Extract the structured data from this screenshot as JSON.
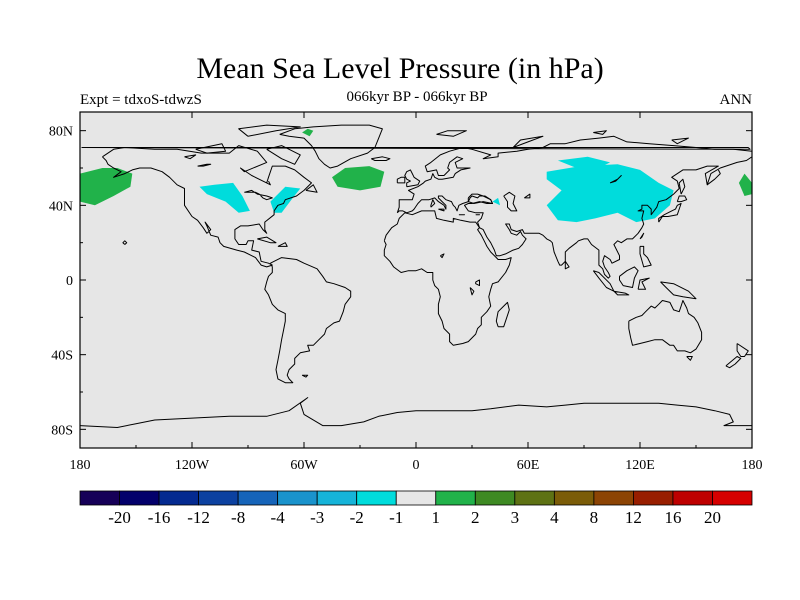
{
  "title": "Mean Sea Level Pressure (in hPa)",
  "subtitle": "066kyr BP - 066kyr BP",
  "left_label": "Expt = tdxoS-tdwzS",
  "right_label": "ANN",
  "map": {
    "projection": "cylindrical-equidistant",
    "lon_range": [
      -180,
      180
    ],
    "lat_range": [
      -90,
      90
    ],
    "background_color": "#e6e6e6",
    "coastline_color": "#000000",
    "x_ticks": [
      {
        "lon": -180,
        "label": "180"
      },
      {
        "lon": -120,
        "label": "120W"
      },
      {
        "lon": -60,
        "label": "60W"
      },
      {
        "lon": 0,
        "label": "0"
      },
      {
        "lon": 60,
        "label": "60E"
      },
      {
        "lon": 120,
        "label": "120E"
      },
      {
        "lon": 180,
        "label": "180"
      }
    ],
    "y_ticks": [
      {
        "lat": 80,
        "label": "80N"
      },
      {
        "lat": 40,
        "label": "40N"
      },
      {
        "lat": 0,
        "label": "0"
      },
      {
        "lat": -40,
        "label": "40S"
      },
      {
        "lat": -80,
        "label": "80S"
      }
    ],
    "anomaly_regions": [
      {
        "name": "north-pacific-positive",
        "level": "1 to 2",
        "color": "#21b24a",
        "points": [
          [
            -180,
            57
          ],
          [
            -168,
            60
          ],
          [
            -160,
            60
          ],
          [
            -152,
            57
          ],
          [
            -153,
            50
          ],
          [
            -162,
            45
          ],
          [
            -172,
            40
          ],
          [
            -180,
            42
          ]
        ]
      },
      {
        "name": "dateline-positive-east",
        "level": "1 to 2",
        "color": "#21b24a",
        "points": [
          [
            180,
            52
          ],
          [
            176,
            57
          ],
          [
            173,
            52
          ],
          [
            176,
            45
          ],
          [
            180,
            46
          ]
        ]
      },
      {
        "name": "north-atlantic-positive",
        "level": "1 to 2",
        "color": "#21b24a",
        "points": [
          [
            -45,
            55
          ],
          [
            -38,
            60
          ],
          [
            -25,
            61
          ],
          [
            -17,
            58
          ],
          [
            -19,
            50
          ],
          [
            -30,
            48
          ],
          [
            -42,
            50
          ]
        ]
      },
      {
        "name": "greenland-positive",
        "level": "1 to 2",
        "color": "#21b24a",
        "points": [
          [
            -61,
            79
          ],
          [
            -58,
            81
          ],
          [
            -55,
            80
          ],
          [
            -57,
            77
          ]
        ]
      },
      {
        "name": "north-america-negative",
        "level": "-2 to -1",
        "color": "#00dcdc",
        "points": [
          [
            -116,
            50
          ],
          [
            -108,
            51
          ],
          [
            -98,
            52
          ],
          [
            -93,
            45
          ],
          [
            -89,
            37
          ],
          [
            -95,
            36
          ],
          [
            -102,
            42
          ],
          [
            -112,
            46
          ]
        ]
      },
      {
        "name": "us-east-coast-negative",
        "level": "-2 to -1",
        "color": "#00dcdc",
        "points": [
          [
            -78,
            42
          ],
          [
            -70,
            50
          ],
          [
            -62,
            49
          ],
          [
            -66,
            44
          ],
          [
            -72,
            36
          ],
          [
            -76,
            36
          ]
        ]
      },
      {
        "name": "central-asia-negative",
        "level": "-2 to -1",
        "color": "#00dcdc",
        "points": [
          [
            70,
            58
          ],
          [
            88,
            61
          ],
          [
            108,
            62
          ],
          [
            120,
            59
          ],
          [
            130,
            52
          ],
          [
            138,
            48
          ],
          [
            136,
            40
          ],
          [
            128,
            33
          ],
          [
            118,
            31
          ],
          [
            108,
            36
          ],
          [
            96,
            33
          ],
          [
            86,
            31
          ],
          [
            76,
            32
          ],
          [
            70,
            40
          ],
          [
            78,
            48
          ],
          [
            70,
            54
          ]
        ]
      },
      {
        "name": "siberia-negative",
        "level": "-2 to -1",
        "color": "#00dcdc",
        "points": [
          [
            76,
            64
          ],
          [
            92,
            66
          ],
          [
            104,
            63
          ],
          [
            96,
            59
          ],
          [
            86,
            60
          ]
        ]
      },
      {
        "name": "caspian-negative-dot",
        "level": "-2 to -1",
        "color": "#00dcdc",
        "points": [
          [
            41,
            42
          ],
          [
            44,
            44
          ],
          [
            45,
            40
          ]
        ]
      }
    ]
  },
  "colorbar": {
    "colors": [
      "#160058",
      "#03006b",
      "#042a90",
      "#0c41a0",
      "#1664b9",
      "#1a93cc",
      "#16b4d9",
      "#00dcdc",
      "#e6e6e6",
      "#21b24a",
      "#3e8a23",
      "#5e7214",
      "#7b5c08",
      "#8c4404",
      "#981e00",
      "#be0000",
      "#d60000"
    ],
    "labels": [
      "-20",
      "-16",
      "-12",
      "-8",
      "-4",
      "-3",
      "-2",
      "-1",
      "1",
      "2",
      "3",
      "4",
      "8",
      "12",
      "16",
      "20"
    ]
  }
}
